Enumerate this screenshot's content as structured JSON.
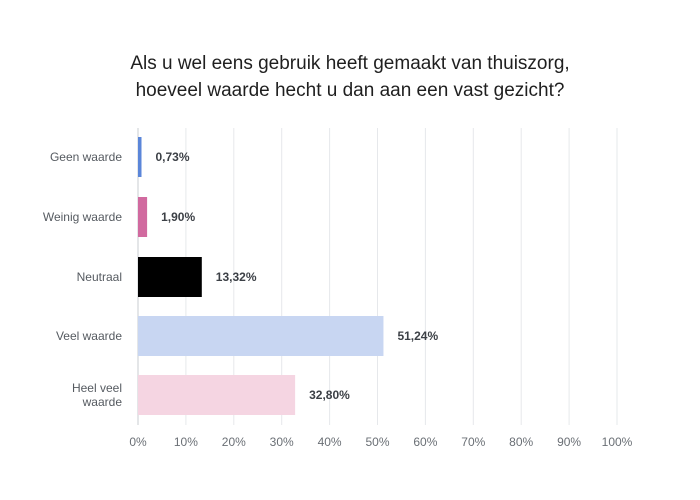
{
  "chart_data": {
    "type": "bar",
    "orientation": "horizontal",
    "title_lines": [
      "Als u wel eens gebruik heeft gemaakt van thuiszorg,",
      "hoeveel waarde hecht u dan aan een vast gezicht?"
    ],
    "categories": [
      [
        "Geen waarde"
      ],
      [
        "Weinig waarde"
      ],
      [
        "Neutraal"
      ],
      [
        "Veel waarde"
      ],
      [
        "Heel veel",
        "waarde"
      ]
    ],
    "values": [
      0.73,
      1.9,
      13.32,
      51.24,
      32.8
    ],
    "value_labels": [
      "0,73%",
      "1,90%",
      "13,32%",
      "51,24%",
      "32,80%"
    ],
    "colors": [
      "#5b86d9",
      "#d16a9f",
      "#000000",
      "#c8d6f2",
      "#f5d5e2"
    ],
    "xlim": [
      0,
      100
    ],
    "x_ticks": [
      0,
      10,
      20,
      30,
      40,
      50,
      60,
      70,
      80,
      90,
      100
    ],
    "x_tick_labels": [
      "0%",
      "10%",
      "20%",
      "30%",
      "40%",
      "50%",
      "60%",
      "70%",
      "80%",
      "90%",
      "100%"
    ],
    "grid": true,
    "legend": "none"
  }
}
